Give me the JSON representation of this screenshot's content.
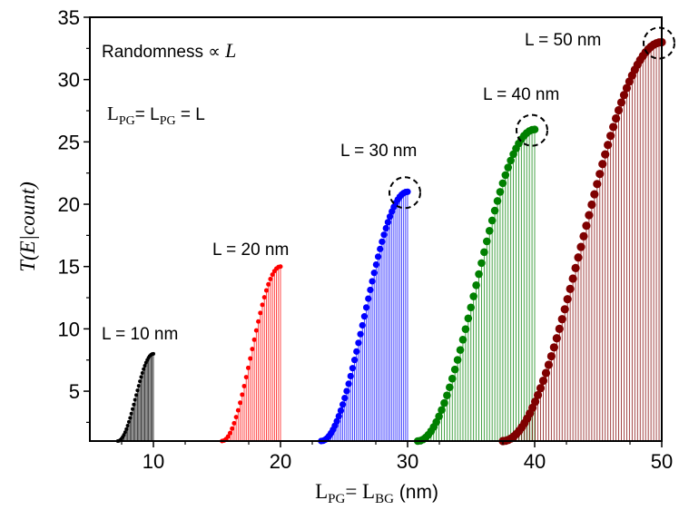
{
  "chart_data": {
    "type": "scatter",
    "xlabel": {
      "main": "L",
      "sub1": "PG",
      "eq": "= L",
      "sub2": "BG",
      "unit": " (nm)"
    },
    "ylabel": "T(E|count)",
    "xlim": [
      5,
      50
    ],
    "ylim": [
      1,
      35
    ],
    "x_ticks": [
      10,
      20,
      30,
      40,
      50
    ],
    "y_ticks": [
      5,
      10,
      15,
      20,
      25,
      30,
      35
    ],
    "grid": false,
    "annotations": {
      "randomness": "Randomness ∝ ",
      "randomness_var": "L",
      "equality_main": "L",
      "equality_sub1": "PG",
      "equality_mid": "= L",
      "equality_sub2": "PG",
      "equality_tail": " = L"
    },
    "series": [
      {
        "label": "L =  10 nm",
        "L": 10,
        "x_start": 7.2,
        "x_end": 10,
        "peak": 8,
        "n_points": 30,
        "color": "#000000",
        "marker_r": 2.0,
        "highlight": false
      },
      {
        "label": "L =  20 nm",
        "L": 20,
        "x_start": 15.4,
        "x_end": 20,
        "peak": 15,
        "n_points": 30,
        "color": "#ff0000",
        "marker_r": 2.5,
        "highlight": false
      },
      {
        "label": "L =  30 nm",
        "L": 30,
        "x_start": 23.2,
        "x_end": 30,
        "peak": 21,
        "n_points": 45,
        "color": "#0000ff",
        "marker_r": 3.6,
        "highlight": true
      },
      {
        "label": "L =  40 nm",
        "L": 40,
        "x_start": 30.8,
        "x_end": 40,
        "peak": 26,
        "n_points": 45,
        "color": "#008000",
        "marker_r": 4.3,
        "highlight": true
      },
      {
        "label": "L = 50 nm",
        "L": 50,
        "x_start": 37.5,
        "x_end": 50,
        "peak": 33,
        "n_points": 60,
        "color": "#7f0000",
        "marker_r": 4.6,
        "highlight": true
      }
    ]
  }
}
